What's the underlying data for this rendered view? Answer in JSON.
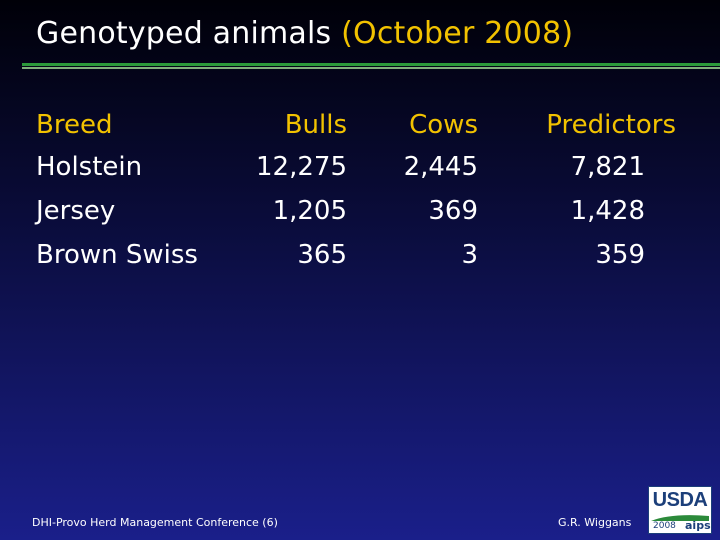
{
  "title": {
    "main": "Genotyped animals",
    "date": "(October 2008)"
  },
  "table": {
    "headers": {
      "breed": "Breed",
      "bulls": "Bulls",
      "cows": "Cows",
      "predictors": "Predictors"
    },
    "rows": [
      {
        "breed": "Holstein",
        "bulls": "12,275",
        "cows": "2,445",
        "predictors": "7,821"
      },
      {
        "breed": "Jersey",
        "bulls": "1,205",
        "cows": "369",
        "predictors": "1,428"
      },
      {
        "breed": "Brown Swiss",
        "bulls": "365",
        "cows": "3",
        "predictors": "359"
      }
    ]
  },
  "footer": {
    "left": "DHI-Provo Herd Management Conference (6)",
    "right": "G.R. Wiggans"
  },
  "logo": {
    "text": "USDA",
    "year": "2008",
    "mark": "aips"
  },
  "colors": {
    "accent": "#f2c200",
    "rule": "#2b9a3a",
    "logo_blue": "#1c3f7a"
  }
}
